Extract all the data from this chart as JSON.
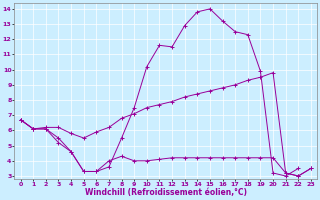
{
  "xlabel": "Windchill (Refroidissement éolien,°C)",
  "background_color": "#cceeff",
  "line_color": "#990099",
  "grid_color": "#ffffff",
  "xlim": [
    -0.5,
    23.5
  ],
  "ylim": [
    2.8,
    14.4
  ],
  "xticks": [
    0,
    1,
    2,
    3,
    4,
    5,
    6,
    7,
    8,
    9,
    10,
    11,
    12,
    13,
    14,
    15,
    16,
    17,
    18,
    19,
    20,
    21,
    22,
    23
  ],
  "yticks": [
    3,
    4,
    5,
    6,
    7,
    8,
    9,
    10,
    11,
    12,
    13,
    14
  ],
  "line1_x": [
    0,
    1,
    2,
    3,
    4,
    5,
    6,
    7,
    8,
    9,
    10,
    11,
    12,
    13,
    14,
    15,
    16,
    17,
    18,
    19,
    20,
    21,
    22
  ],
  "line1_y": [
    6.7,
    6.1,
    6.1,
    5.2,
    4.6,
    3.3,
    3.3,
    3.6,
    5.5,
    7.5,
    10.2,
    11.6,
    11.5,
    12.9,
    13.8,
    14.0,
    13.2,
    12.5,
    12.3,
    9.9,
    3.2,
    3.0,
    3.5
  ],
  "line2_x": [
    0,
    1,
    2,
    3,
    4,
    5,
    6,
    7,
    8,
    9,
    10,
    11,
    12,
    13,
    14,
    15,
    16,
    17,
    18,
    19,
    20,
    21,
    22,
    23
  ],
  "line2_y": [
    6.7,
    6.1,
    6.2,
    6.2,
    5.8,
    5.5,
    5.9,
    6.2,
    6.8,
    7.1,
    7.5,
    7.7,
    7.9,
    8.2,
    8.4,
    8.6,
    8.8,
    9.0,
    9.3,
    9.5,
    9.8,
    3.2,
    3.0,
    3.5
  ],
  "line3_x": [
    0,
    1,
    2,
    3,
    4,
    5,
    6,
    7,
    8,
    9,
    10,
    11,
    12,
    13,
    14,
    15,
    16,
    17,
    18,
    19,
    20,
    21,
    22,
    23
  ],
  "line3_y": [
    6.7,
    6.1,
    6.1,
    5.5,
    4.6,
    3.3,
    3.3,
    4.0,
    4.3,
    4.0,
    4.0,
    4.1,
    4.2,
    4.2,
    4.2,
    4.2,
    4.2,
    4.2,
    4.2,
    4.2,
    4.2,
    3.2,
    3.0,
    3.5
  ]
}
